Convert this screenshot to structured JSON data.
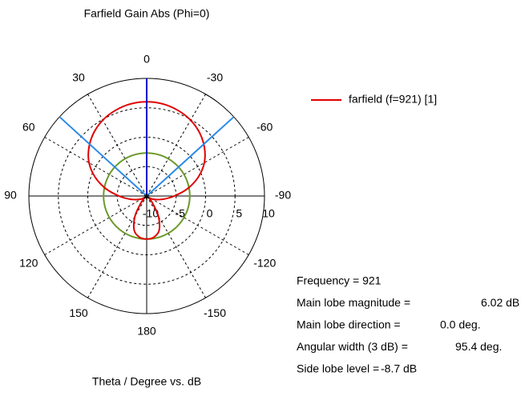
{
  "chart_data": {
    "type": "polar",
    "title": "Farfield Gain Abs (Phi=0)",
    "x_label": "Theta / Degree vs. dB",
    "x": [
      0,
      10,
      20,
      30,
      40,
      50,
      60,
      70,
      80,
      90,
      100,
      110,
      120,
      130,
      140,
      150,
      160,
      170,
      180,
      -170,
      -160,
      -150,
      -140,
      -130,
      -120,
      -110,
      -100,
      -90,
      -80,
      -70,
      -60,
      -50,
      -40,
      -30,
      -20,
      -10
    ],
    "series": [
      {
        "name": "farfield (f=921) [1]",
        "color": "#e00000",
        "values": [
          6.02,
          5.9,
          5.5,
          4.9,
          4.0,
          2.8,
          1.3,
          -0.7,
          -3.0,
          -5.3,
          -7.0,
          -8.2,
          -9.0,
          -9.5,
          -8.5,
          -6.0,
          -3.8,
          -2.9,
          -2.68,
          -2.9,
          -3.8,
          -6.0,
          -8.5,
          -9.5,
          -9.0,
          -8.2,
          -7.0,
          -5.3,
          -3.0,
          -0.7,
          1.3,
          2.8,
          4.0,
          4.9,
          5.5,
          5.9
        ]
      }
    ],
    "xticks": [
      0,
      30,
      60,
      90,
      120,
      150,
      180,
      -150,
      -120,
      -90,
      -60,
      -30
    ],
    "ylim": [
      -10,
      10
    ],
    "yticks": [
      -10,
      -5,
      0,
      5,
      10
    ],
    "side_lobe_circle": {
      "value": -2.68,
      "color": "#6b9a2a"
    },
    "reference_lines": [
      {
        "angle": 0,
        "color": "#0000cc"
      },
      {
        "angle": 47.7,
        "color": "#2a8ae6"
      },
      {
        "angle": -47.7,
        "color": "#2a8ae6"
      }
    ],
    "info": [
      [
        "Frequency = 921"
      ],
      [
        "Main lobe magnitude =",
        "6.02 dB"
      ],
      [
        "Main lobe direction =",
        "0.0 deg."
      ],
      [
        "Angular width (3 dB) =",
        "95.4 deg."
      ],
      [
        "Side lobe level =",
        "-8.7 dB"
      ]
    ]
  }
}
